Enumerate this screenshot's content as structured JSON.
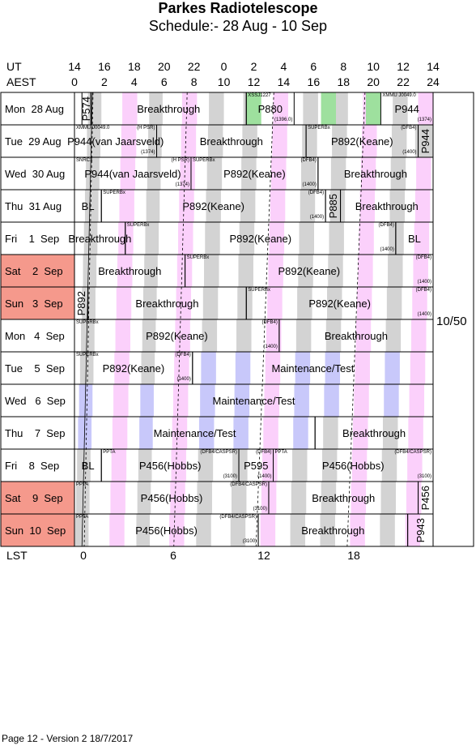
{
  "header": {
    "title": "Parkes Radiotelescope",
    "subtitle": "Schedule:- 28 Aug - 10 Sep"
  },
  "axes": {
    "ut_label": "UT",
    "aest_label": "AEST",
    "lst_label": "LST",
    "ut_ticks": [
      "14",
      "16",
      "18",
      "20",
      "22",
      "0",
      "2",
      "4",
      "6",
      "8",
      "10",
      "12",
      "14"
    ],
    "aest_ticks": [
      "0",
      "2",
      "4",
      "6",
      "8",
      "10",
      "12",
      "14",
      "16",
      "18",
      "20",
      "22",
      "24"
    ],
    "lst_ticks": [
      "0",
      "6",
      "12",
      "18"
    ]
  },
  "colors": {
    "weekend": "#f5998c",
    "gray": "#d3d3d3",
    "pink": "#fbd0fb",
    "blue": "#c8c8fa",
    "green": "#9ee09e"
  },
  "days": [
    {
      "label": "Mon  28 Aug",
      "weekend": false
    },
    {
      "label": "Tue  29 Aug",
      "weekend": false
    },
    {
      "label": "Wed  30 Aug",
      "weekend": false
    },
    {
      "label": "Thu  31 Aug",
      "weekend": false
    },
    {
      "label": "Fri    1  Sep",
      "weekend": false
    },
    {
      "label": "Sat    2  Sep",
      "weekend": true
    },
    {
      "label": "Sun   3  Sep",
      "weekend": true
    },
    {
      "label": "Mon   4  Sep",
      "weekend": false
    },
    {
      "label": "Tue    5  Sep",
      "weekend": false
    },
    {
      "label": "Wed   6  Sep",
      "weekend": false
    },
    {
      "label": "Thu    7  Sep",
      "weekend": false
    },
    {
      "label": "Fri    8  Sep",
      "weekend": false
    },
    {
      "label": "Sat    9  Sep",
      "weekend": true
    },
    {
      "label": "Sun  10  Sep",
      "weekend": true
    }
  ],
  "blocks": [
    {
      "row": 0,
      "start": 0.5,
      "end": 1.1,
      "label": "P574",
      "vertical": true
    },
    {
      "row": 0,
      "start": 1.1,
      "end": 11.5,
      "label": "Breakthrough"
    },
    {
      "row": 0,
      "start": 11.5,
      "end": 14.7,
      "label": "P880",
      "tl": "XSSJ1227",
      "br": "(1396.0)"
    },
    {
      "row": 0,
      "start": 20.5,
      "end": 24,
      "label": "P944",
      "tl": "XMMU J0049.0",
      "br": "(1374)"
    },
    {
      "row": 1,
      "start": 0,
      "end": 5.5,
      "label": "P944(van Jaarsveld)",
      "tl": "XMMU J0049.0",
      "tr": "(H PSR)",
      "br": "(1374)"
    },
    {
      "row": 1,
      "start": 5.5,
      "end": 15.5,
      "label": "Breakthrough"
    },
    {
      "row": 1,
      "start": 15.5,
      "end": 23,
      "label": "P892(Keane)",
      "tl": "SUPERBx",
      "tr": "(DFB4)",
      "br": "(1400)"
    },
    {
      "row": 1,
      "start": 23,
      "end": 24,
      "label": "P944",
      "vertical": true
    },
    {
      "row": 2,
      "start": 0,
      "end": 7.8,
      "label": "P944(van Jaarsveld)",
      "tl": "SNRC3",
      "tr": "(H PSR)",
      "br": "(1374)"
    },
    {
      "row": 2,
      "start": 7.8,
      "end": 16.3,
      "label": "P892(Keane)",
      "tl": "SUPERBx",
      "tr": "(DFB4)",
      "br": "(1400)"
    },
    {
      "row": 2,
      "start": 16.3,
      "end": 24,
      "label": "Breakthrough"
    },
    {
      "row": 3,
      "start": 0,
      "end": 1.8,
      "label": "BL"
    },
    {
      "row": 3,
      "start": 1.8,
      "end": 16.8,
      "label": "P892(Keane)",
      "tl": "SUPERBx",
      "tr": "(DFB4)",
      "br": "(1400)"
    },
    {
      "row": 3,
      "start": 16.8,
      "end": 17.8,
      "label": "P885",
      "vertical": true
    },
    {
      "row": 3,
      "start": 17.8,
      "end": 24,
      "label": "Breakthrough"
    },
    {
      "row": 4,
      "start": 0,
      "end": 3.4,
      "label": "Breakthrough"
    },
    {
      "row": 4,
      "start": 3.4,
      "end": 21.5,
      "label": "P892(Keane)",
      "tl": "SUPERBx",
      "tr": "(DFB4)",
      "br": "(1400)"
    },
    {
      "row": 4,
      "start": 21.5,
      "end": 24,
      "label": "BL"
    },
    {
      "row": 5,
      "start": 0,
      "end": 7.4,
      "label": "Breakthrough"
    },
    {
      "row": 5,
      "start": 7.4,
      "end": 24,
      "label": "P892(Keane)",
      "tl": "SUPERBx",
      "tr": "(DFB4)",
      "br": "(1400)"
    },
    {
      "row": 6,
      "start": 0,
      "end": 0.9,
      "label": "P892",
      "vertical": true
    },
    {
      "row": 6,
      "start": 0.9,
      "end": 11.5,
      "label": "Breakthrough"
    },
    {
      "row": 6,
      "start": 11.5,
      "end": 24,
      "label": "P892(Keane)",
      "tl": "SUPERBx",
      "tr": "(DFB4)",
      "br": "(1400)"
    },
    {
      "row": 7,
      "start": 0,
      "end": 13.7,
      "label": "P892(Keane)",
      "tl": "SUPERBx",
      "tr": "(DFB4)",
      "br": "(1400)"
    },
    {
      "row": 7,
      "start": 13.7,
      "end": 24,
      "label": "Breakthrough"
    },
    {
      "row": 8,
      "start": 0,
      "end": 7.9,
      "label": "P892(Keane)",
      "tl": "SUPERBx",
      "tr": "(DFB4)",
      "br": "(1400)"
    },
    {
      "row": 8,
      "start": 7.9,
      "end": 24,
      "label": "Maintenance/Test"
    },
    {
      "row": 9,
      "start": 0,
      "end": 24,
      "label": "Maintenance/Test"
    },
    {
      "row": 10,
      "start": 0,
      "end": 16.1,
      "label": "Maintenance/Test"
    },
    {
      "row": 10,
      "start": 16.1,
      "end": 24,
      "label": "Breakthrough"
    },
    {
      "row": 11,
      "start": 0,
      "end": 1.8,
      "label": "BL"
    },
    {
      "row": 11,
      "start": 1.8,
      "end": 11.0,
      "label": "P456(Hobbs)",
      "tl": "PPTA",
      "tr": "(DFB4/CASPSR)",
      "br": "(3100)"
    },
    {
      "row": 11,
      "start": 11.0,
      "end": 13.3,
      "label": "P595",
      "tr": "(DFB4)",
      "br": "(1400)"
    },
    {
      "row": 11,
      "start": 13.3,
      "end": 24,
      "label": "P456(Hobbs)",
      "tl": "PPTA",
      "tr": "(DFB4/CASPSR)",
      "br": "(3100)"
    },
    {
      "row": 12,
      "start": 0,
      "end": 13.0,
      "label": "P456(Hobbs)",
      "tl": "PPTA",
      "tr": "(DFB4/CASPSR)",
      "br": "(3100)"
    },
    {
      "row": 12,
      "start": 13.0,
      "end": 23.0,
      "label": "Breakthrough"
    },
    {
      "row": 12,
      "start": 23.0,
      "end": 24,
      "label": "P456",
      "vertical": true
    },
    {
      "row": 13,
      "start": 0,
      "end": 12.3,
      "label": "P456(Hobbs)",
      "tl": "PPTA",
      "tr": "(DFB4/CASPSR)",
      "br": "(3100)"
    },
    {
      "row": 13,
      "start": 12.3,
      "end": 22.3,
      "label": "Breakthrough"
    },
    {
      "row": 13,
      "start": 22.3,
      "end": 24,
      "label": "P943",
      "vertical": true
    }
  ],
  "side_label": "10/50",
  "footer": "Page 12 - Version 2  18/7/2017"
}
